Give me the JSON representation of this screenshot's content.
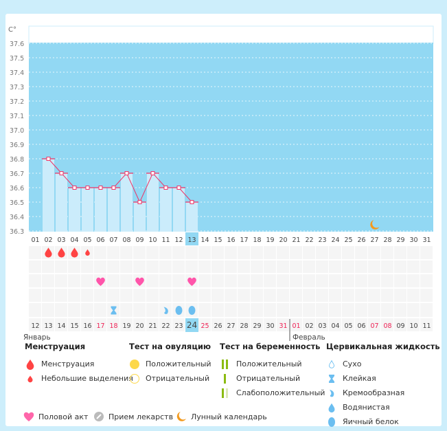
{
  "chart_data": {
    "type": "line",
    "ylabel": "C°",
    "ylim": [
      36.3,
      37.6
    ],
    "yticks": [
      "37.6",
      "37.5",
      "37.4",
      "37.3",
      "37.2",
      "37.1",
      "37.0",
      "36.9",
      "36.8",
      "36.7",
      "36.6",
      "36.5",
      "36.4",
      "36.3"
    ],
    "cycle_days": [
      "01",
      "02",
      "03",
      "04",
      "05",
      "06",
      "07",
      "08",
      "09",
      "10",
      "11",
      "12",
      "13",
      "14",
      "15",
      "16",
      "17",
      "18",
      "19",
      "20",
      "21",
      "22",
      "23",
      "24",
      "25",
      "26",
      "27",
      "28",
      "29",
      "30",
      "31"
    ],
    "highlight_cycle_day": "13",
    "temperatures": [
      null,
      36.8,
      36.7,
      36.6,
      36.6,
      36.6,
      36.6,
      36.7,
      36.5,
      36.7,
      36.6,
      36.6,
      36.5
    ],
    "dates": [
      "12",
      "13",
      "14",
      "15",
      "16",
      "17",
      "18",
      "19",
      "20",
      "21",
      "22",
      "23",
      "24",
      "25",
      "26",
      "27",
      "28",
      "29",
      "30",
      "31",
      "01",
      "02",
      "03",
      "04",
      "05",
      "06",
      "07",
      "08",
      "09",
      "10",
      "11"
    ],
    "red_dates": [
      5,
      6,
      13,
      19,
      20,
      26,
      27
    ],
    "highlight_date": "24",
    "months": [
      {
        "label": "Январь",
        "start": 0
      },
      {
        "label": "Февраль",
        "start": 20
      }
    ],
    "marks": {
      "menstruation": [
        1,
        2,
        3
      ],
      "light_bleeding": [
        4
      ],
      "intercourse": [
        5,
        8,
        12
      ],
      "cervical": [
        {
          "day": 6,
          "type": "sticky"
        },
        {
          "day": 10,
          "type": "creamy"
        },
        {
          "day": 11,
          "type": "watery"
        },
        {
          "day": 12,
          "type": "eggwhite"
        }
      ],
      "moon": [
        26
      ]
    },
    "colors": {
      "plot_bg": "#92d8f3",
      "bar": "#cbecfb",
      "line": "#ee3366",
      "highlight": "#92d8f3",
      "red_text": "#ee2255"
    }
  },
  "legend": {
    "menstruation": {
      "title": "Менструация",
      "items": [
        "Менструация",
        "Небольшие выделения"
      ]
    },
    "ovulation": {
      "title": "Тест на овуляцию",
      "items": [
        "Положительный",
        "Отрицательный"
      ]
    },
    "pregnancy": {
      "title": "Тест на беременность",
      "items": [
        "Положительный",
        "Отрицательный",
        "Слабоположительный"
      ]
    },
    "cervical": {
      "title": "Цервикальная жидкость",
      "items": [
        "Сухо",
        "Клейкая",
        "Кремообразная",
        "Водянистая",
        "Яичный белок"
      ]
    },
    "bottom": [
      "Половой акт",
      "Прием лекарств",
      "Лунный календарь"
    ]
  }
}
